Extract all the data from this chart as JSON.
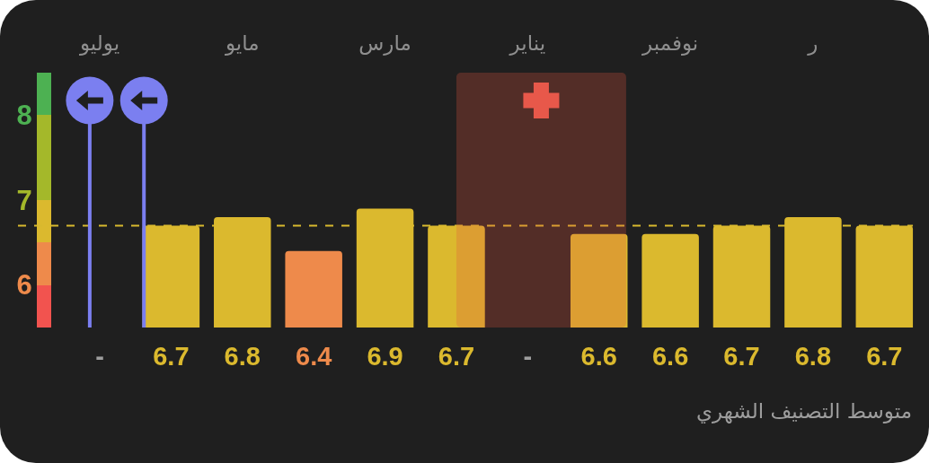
{
  "chart_data": {
    "type": "bar",
    "title": "متوسط التصنيف الشهري",
    "categories": [
      "يوليو",
      null,
      "مايو",
      null,
      "مارس",
      null,
      "يناير",
      null,
      "نوفمبر",
      null,
      "ر",
      null
    ],
    "values": [
      null,
      6.7,
      6.8,
      6.4,
      6.9,
      6.7,
      null,
      6.6,
      6.6,
      6.7,
      6.8,
      6.7
    ],
    "colors": [
      "#9e9e9e",
      "#dbb92e",
      "#dbb92e",
      "#ee8a4b",
      "#dbb92e",
      "#dbb92e",
      "#9e9e9e",
      "#dbb92e",
      "#dbb92e",
      "#dbb92e",
      "#dbb92e",
      "#dbb92e"
    ],
    "value_labels": [
      "-",
      "6.7",
      "6.8",
      "6.4",
      "6.9",
      "6.7",
      "-",
      "6.6",
      "6.6",
      "6.7",
      "6.8",
      "6.7"
    ],
    "ylim": [
      5.5,
      8.5
    ],
    "yticks": [
      6,
      7,
      8
    ],
    "ref_lines": [
      {
        "axis": "y",
        "value": 6.7,
        "color": "#d8b92e",
        "line_style": "dashed"
      }
    ]
  }
}
